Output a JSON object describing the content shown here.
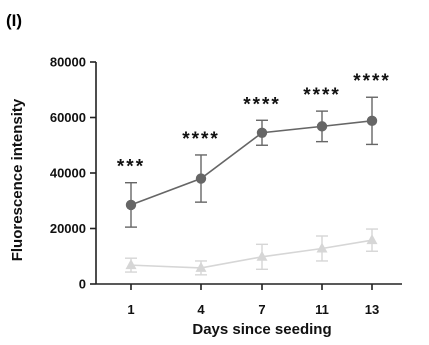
{
  "panel_label": "(I)",
  "chart_data": {
    "type": "line",
    "title": "",
    "xlabel": "Days since seeding",
    "ylabel": "Fluorescence intensity",
    "categories": [
      "1",
      "4",
      "7",
      "11",
      "13"
    ],
    "yticks": [
      "0",
      "20000",
      "40000",
      "60000",
      "80000"
    ],
    "ylim": [
      0,
      80000
    ],
    "grid": false,
    "legend": "none",
    "series": [
      {
        "color": "#666666",
        "marker": "circle",
        "values": [
          28500,
          38000,
          54500,
          56800,
          58800
        ],
        "error": [
          8000,
          8500,
          4500,
          5500,
          8500
        ]
      },
      {
        "color": "#d6d6d6",
        "marker": "triangle",
        "values": [
          6800,
          5800,
          9800,
          12800,
          15800
        ],
        "error": [
          2500,
          2500,
          4500,
          4500,
          4000
        ]
      }
    ],
    "annotations": [
      "***",
      "****",
      "****",
      "****",
      "****"
    ]
  }
}
